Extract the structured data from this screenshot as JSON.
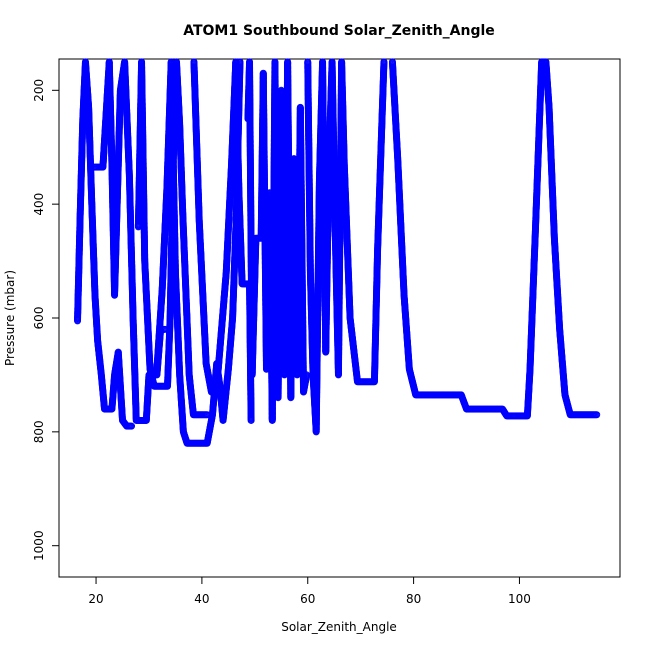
{
  "chart_data": {
    "type": "scatter",
    "title": "ATOM1 Southbound Solar_Zenith_Angle",
    "xlabel": "Solar_Zenith_Angle",
    "ylabel": "Pressure (mbar)",
    "xlim": [
      13,
      119
    ],
    "ylim": [
      1055,
      145
    ],
    "y_reversed": true,
    "x_ticks": [
      20,
      40,
      60,
      80,
      100
    ],
    "y_ticks": [
      200,
      400,
      600,
      800,
      1000
    ],
    "marker": "open-circle",
    "color": "#0000ff",
    "series": [
      {
        "points": [
          [
            16.5,
            605
          ],
          [
            17.0,
            420
          ],
          [
            17.5,
            250
          ],
          [
            18.0,
            150
          ],
          [
            18.6,
            230
          ],
          [
            19.2,
            400
          ],
          [
            19.8,
            560
          ],
          [
            20.3,
            640
          ],
          [
            21.0,
            700
          ],
          [
            21.6,
            760
          ],
          [
            23.0,
            760
          ],
          [
            23.5,
            700
          ],
          [
            24.2,
            660
          ],
          [
            25.0,
            780
          ],
          [
            25.8,
            790
          ],
          [
            26.7,
            790
          ]
        ]
      },
      {
        "points": [
          [
            19.6,
            335
          ],
          [
            21.3,
            335
          ],
          [
            22.5,
            150
          ],
          [
            23.0,
            330
          ],
          [
            23.5,
            560
          ],
          [
            24.6,
            200
          ],
          [
            25.4,
            150
          ],
          [
            26.3,
            350
          ],
          [
            27.0,
            600
          ],
          [
            27.6,
            780
          ],
          [
            29.5,
            780
          ],
          [
            30.0,
            700
          ],
          [
            31.5,
            700
          ],
          [
            32.2,
            620
          ],
          [
            33.0,
            620
          ]
        ]
      },
      {
        "points": [
          [
            28.0,
            440
          ],
          [
            28.6,
            150
          ],
          [
            29.2,
            500
          ],
          [
            30.2,
            690
          ],
          [
            31.0,
            720
          ],
          [
            33.5,
            720
          ],
          [
            34.0,
            600
          ],
          [
            34.6,
            320
          ],
          [
            35.2,
            150
          ],
          [
            35.8,
            260
          ],
          [
            36.4,
            420
          ],
          [
            37.0,
            560
          ],
          [
            37.6,
            700
          ],
          [
            38.4,
            770
          ],
          [
            41.0,
            770
          ]
        ]
      },
      {
        "points": [
          [
            31.5,
            690
          ],
          [
            32.5,
            550
          ],
          [
            33.4,
            370
          ],
          [
            34.2,
            150
          ],
          [
            35.0,
            520
          ],
          [
            35.8,
            700
          ],
          [
            36.5,
            800
          ],
          [
            37.2,
            820
          ],
          [
            41.0,
            820
          ],
          [
            42.0,
            770
          ],
          [
            42.8,
            680
          ],
          [
            43.4,
            720
          ],
          [
            44.0,
            780
          ],
          [
            45.0,
            690
          ],
          [
            45.8,
            600
          ],
          [
            46.5,
            420
          ],
          [
            47.2,
            150
          ]
        ]
      },
      {
        "points": [
          [
            38.5,
            150
          ],
          [
            39.5,
            430
          ],
          [
            40.8,
            680
          ],
          [
            41.8,
            730
          ],
          [
            43.0,
            700
          ],
          [
            44.6,
            520
          ],
          [
            45.6,
            330
          ],
          [
            46.4,
            150
          ],
          [
            47.0,
            380
          ],
          [
            47.6,
            540
          ],
          [
            49.0,
            540
          ],
          [
            49.3,
            780
          ]
        ]
      },
      {
        "points": [
          [
            48.7,
            250
          ],
          [
            49.0,
            150
          ],
          [
            49.5,
            700
          ],
          [
            50.2,
            460
          ],
          [
            51.2,
            460
          ],
          [
            51.6,
            170
          ],
          [
            52.2,
            690
          ],
          [
            52.8,
            380
          ],
          [
            53.3,
            780
          ],
          [
            53.8,
            150
          ],
          [
            54.4,
            740
          ],
          [
            55.0,
            200
          ],
          [
            55.6,
            700
          ],
          [
            56.2,
            150
          ],
          [
            56.8,
            740
          ],
          [
            57.4,
            320
          ],
          [
            58.0,
            700
          ],
          [
            58.6,
            230
          ],
          [
            59.2,
            730
          ],
          [
            59.8,
            700
          ]
        ]
      },
      {
        "points": [
          [
            60.0,
            150
          ],
          [
            60.5,
            520
          ],
          [
            61.0,
            700
          ],
          [
            61.6,
            800
          ],
          [
            62.2,
            360
          ],
          [
            62.8,
            150
          ],
          [
            63.4,
            660
          ],
          [
            64.0,
            330
          ],
          [
            64.6,
            150
          ],
          [
            65.2,
            450
          ],
          [
            65.8,
            700
          ],
          [
            66.4,
            150
          ],
          [
            66.9,
            330
          ],
          [
            68.0,
            600
          ],
          [
            69.4,
            712
          ],
          [
            72.6,
            712
          ],
          [
            73.2,
            480
          ],
          [
            74.4,
            150
          ]
        ]
      },
      {
        "points": [
          [
            76.0,
            150
          ],
          [
            77.0,
            320
          ],
          [
            78.2,
            560
          ],
          [
            79.2,
            690
          ],
          [
            80.4,
            735
          ],
          [
            89.0,
            735
          ],
          [
            90.0,
            760
          ],
          [
            96.8,
            760
          ],
          [
            97.6,
            772
          ],
          [
            101.5,
            772
          ],
          [
            102.0,
            690
          ],
          [
            103.0,
            450
          ],
          [
            104.2,
            150
          ],
          [
            105.0,
            150
          ],
          [
            105.6,
            230
          ],
          [
            106.6,
            460
          ],
          [
            107.6,
            620
          ],
          [
            108.6,
            735
          ],
          [
            109.6,
            770
          ],
          [
            114.6,
            770
          ]
        ]
      }
    ]
  }
}
